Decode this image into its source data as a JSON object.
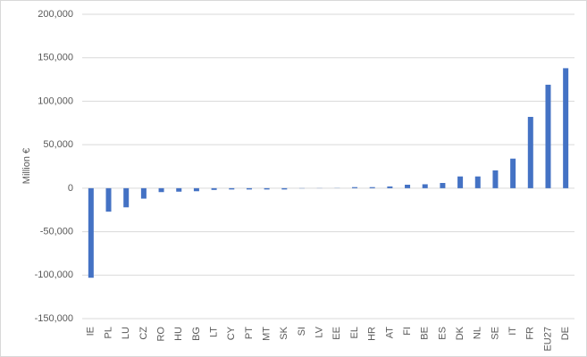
{
  "chart_data": {
    "type": "bar",
    "y_label": "Million €",
    "categories": [
      "IE",
      "PL",
      "LU",
      "CZ",
      "RO",
      "HU",
      "BG",
      "LT",
      "CY",
      "PT",
      "MT",
      "SK",
      "SI",
      "LV",
      "EE",
      "EL",
      "HR",
      "AT",
      "FI",
      "BE",
      "ES",
      "DK",
      "NL",
      "SE",
      "IT",
      "FR",
      "EU27",
      "DE"
    ],
    "values": [
      -103000,
      -27000,
      -22000,
      -12000,
      -4500,
      -4000,
      -3500,
      -2000,
      -1500,
      -1500,
      -1500,
      -1500,
      -300,
      -200,
      200,
      1200,
      1200,
      2000,
      4000,
      4500,
      6000,
      13500,
      13500,
      20500,
      34000,
      82000,
      119000,
      138000
    ],
    "color": "#4472c4",
    "ylim": [
      -150000,
      200000
    ],
    "yticks": [
      {
        "value": -150000,
        "label": "-150,000"
      },
      {
        "value": -100000,
        "label": "-100,000"
      },
      {
        "value": -50000,
        "label": "-50,000"
      },
      0,
      {
        "value": 50000,
        "label": "50,000"
      },
      {
        "value": 100000,
        "label": "100,000"
      },
      {
        "value": 150000,
        "label": "150,000"
      },
      {
        "value": 200000,
        "label": "200,000"
      }
    ],
    "grid": true
  }
}
